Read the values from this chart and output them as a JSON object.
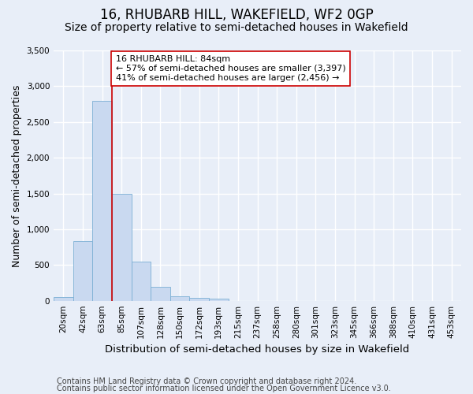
{
  "title": "16, RHUBARB HILL, WAKEFIELD, WF2 0GP",
  "subtitle": "Size of property relative to semi-detached houses in Wakefield",
  "xlabel": "Distribution of semi-detached houses by size in Wakefield",
  "ylabel": "Number of semi-detached properties",
  "bar_labels": [
    "20sqm",
    "42sqm",
    "63sqm",
    "85sqm",
    "107sqm",
    "128sqm",
    "150sqm",
    "172sqm",
    "193sqm",
    "215sqm",
    "237sqm",
    "258sqm",
    "280sqm",
    "301sqm",
    "323sqm",
    "345sqm",
    "366sqm",
    "388sqm",
    "410sqm",
    "431sqm",
    "453sqm"
  ],
  "bar_values": [
    55,
    830,
    2800,
    1500,
    550,
    190,
    60,
    40,
    30,
    0,
    0,
    0,
    0,
    0,
    0,
    0,
    0,
    0,
    0,
    0,
    0
  ],
  "bar_color": "#c9d9f0",
  "bar_edge_color": "#7bafd4",
  "highlight_color": "#cc0000",
  "annotation_text": "16 RHUBARB HILL: 84sqm\n← 57% of semi-detached houses are smaller (3,397)\n41% of semi-detached houses are larger (2,456) →",
  "annotation_box_color": "#ffffff",
  "annotation_box_edge": "#cc0000",
  "ylim": [
    0,
    3500
  ],
  "yticks": [
    0,
    500,
    1000,
    1500,
    2000,
    2500,
    3000,
    3500
  ],
  "footer_line1": "Contains HM Land Registry data © Crown copyright and database right 2024.",
  "footer_line2": "Contains public sector information licensed under the Open Government Licence v3.0.",
  "background_color": "#e8eef8",
  "plot_background": "#e8eef8",
  "grid_color": "#ffffff",
  "title_fontsize": 12,
  "subtitle_fontsize": 10,
  "axis_label_fontsize": 9,
  "tick_fontsize": 7.5,
  "footer_fontsize": 7
}
